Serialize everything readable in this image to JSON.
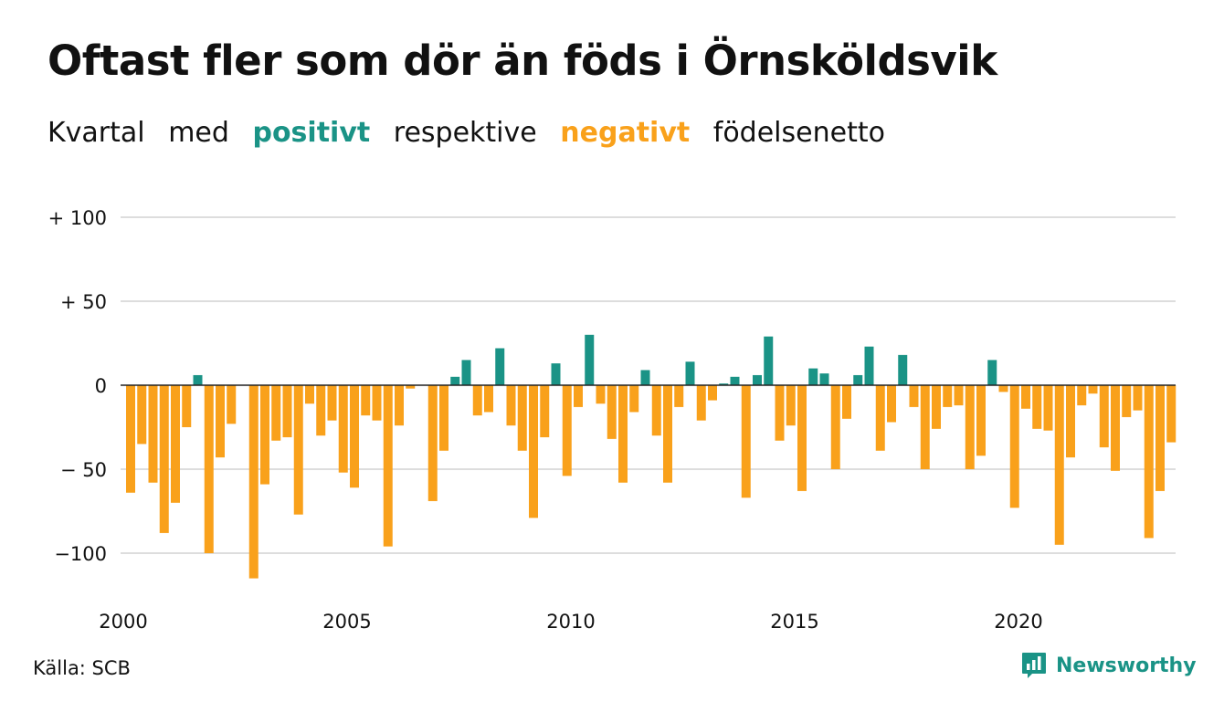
{
  "title": "Oftast fler som dör än föds i Örnsköldsvik",
  "subtitle": {
    "w1": "Kvartal",
    "w2": "med",
    "positive_word": "positivt",
    "w3": "respektive",
    "negative_word": "negativt",
    "w4": "födelsenetto"
  },
  "colors": {
    "positive": "#1a9386",
    "negative": "#f9a11b",
    "grid": "#dddddd",
    "zero_line": "#222222",
    "brand": "#1a9386"
  },
  "source": "Källa: SCB",
  "brand": {
    "name": "Newsworthy",
    "icon": "newsworthy-logo-icon"
  },
  "chart_data": {
    "type": "bar",
    "x_start": "2000 Q1",
    "x_ticks": [
      "2000",
      "2005",
      "2010",
      "2015",
      "2020"
    ],
    "y_ticks": [
      "+ 100",
      "+ 50",
      "0",
      "− 50",
      "−100"
    ],
    "y_tick_values": [
      100,
      50,
      0,
      -50,
      -100
    ],
    "ylim": [
      -118,
      100
    ],
    "grid": true,
    "values": [
      -64,
      -35,
      -58,
      -88,
      -70,
      -25,
      6,
      -100,
      -43,
      -23,
      0,
      -115,
      -59,
      -33,
      -31,
      -77,
      -11,
      -30,
      -21,
      -52,
      -61,
      -18,
      -21,
      -96,
      -24,
      -2,
      0,
      -69,
      -39,
      5,
      15,
      -18,
      -16,
      22,
      -24,
      -39,
      -79,
      -31,
      13,
      -54,
      -13,
      30,
      -11,
      -32,
      -58,
      -16,
      9,
      -30,
      -58,
      -13,
      14,
      -21,
      -9,
      1,
      5,
      -67,
      6,
      29,
      -33,
      -24,
      -63,
      10,
      7,
      -50,
      -20,
      6,
      23,
      -39,
      -22,
      18,
      -13,
      -50,
      -26,
      -13,
      -12,
      -50,
      -42,
      15,
      -4,
      -73,
      -14,
      -26,
      -27,
      -95,
      -43,
      -12,
      -5,
      -37,
      -51,
      -19,
      -15,
      -91,
      -63,
      -34
    ]
  }
}
